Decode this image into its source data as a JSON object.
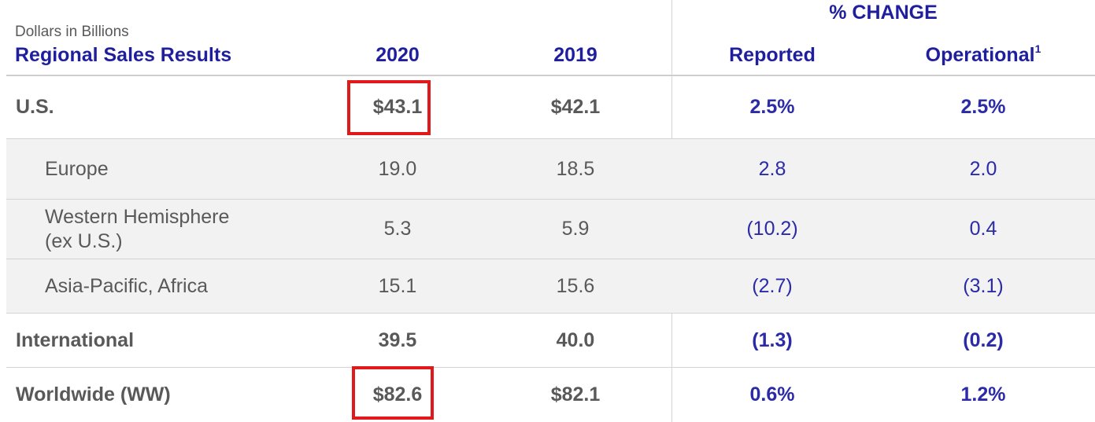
{
  "header": {
    "units": "Dollars in Billions",
    "title": "Regional Sales Results",
    "pct_change": "% CHANGE",
    "col_2020": "2020",
    "col_2019": "2019",
    "col_reported": "Reported",
    "col_operational": "Operational",
    "col_operational_footnote": "1"
  },
  "rows": [
    {
      "label": "U.S.",
      "y2020": "$43.1",
      "y2019": "$42.1",
      "reported": "2.5%",
      "operational": "2.5%"
    },
    {
      "label": "Europe",
      "y2020": "19.0",
      "y2019": "18.5",
      "reported": "2.8",
      "operational": "2.0"
    },
    {
      "label_line1": "Western Hemisphere",
      "label_line2": "(ex U.S.)",
      "y2020": "5.3",
      "y2019": "5.9",
      "reported": "(10.2)",
      "operational": "0.4"
    },
    {
      "label": "Asia-Pacific, Africa",
      "y2020": "15.1",
      "y2019": "15.6",
      "reported": "(2.7)",
      "operational": "(3.1)"
    },
    {
      "label": "International",
      "y2020": "39.5",
      "y2019": "40.0",
      "reported": "(1.3)",
      "operational": "(0.2)"
    },
    {
      "label": "Worldwide (WW)",
      "y2020": "$82.6",
      "y2019": "$82.1",
      "reported": "0.6%",
      "operational": "1.2%"
    }
  ],
  "colors": {
    "header_blue": "#1f1f9e",
    "value_blue": "#2b2ba8",
    "text_gray": "#595959",
    "highlight_red": "#e01a1a",
    "row_shade": "#f2f2f2"
  }
}
